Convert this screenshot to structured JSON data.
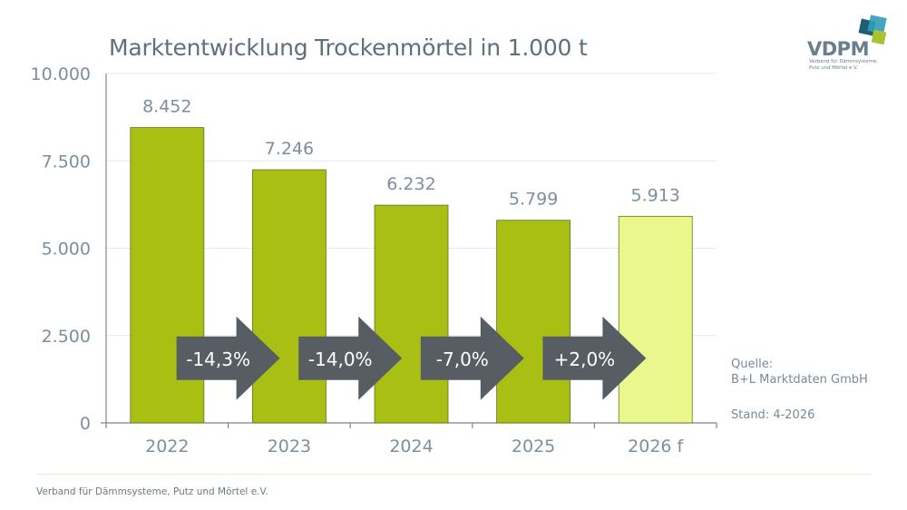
{
  "title": "Marktentwicklung Trockenmörtel in 1.000 t",
  "logo": {
    "name": "VDPM",
    "sub_line1": "Verband für Dämmsysteme,",
    "sub_line2": "Putz und Mörtel e.V.",
    "colors": [
      "#1f5d73",
      "#2f9fb8",
      "#a8c430"
    ]
  },
  "chart_data": {
    "type": "bar",
    "title": "Marktentwicklung Trockenmörtel in 1.000 t",
    "categories": [
      "2022",
      "2023",
      "2024",
      "2025",
      "2026 f"
    ],
    "values": [
      8452,
      7246,
      6232,
      5799,
      5913
    ],
    "value_labels": [
      "8.452",
      "7.246",
      "6.232",
      "5.799",
      "5.913"
    ],
    "ylim": [
      0,
      10000
    ],
    "yticks": [
      0,
      2500,
      5000,
      7500,
      10000
    ],
    "ytick_labels": [
      "0",
      "2.500",
      "5.000",
      "7.500",
      "10.000"
    ],
    "changes": [
      "-14,3%",
      "-14,0%",
      "-7,0%",
      "+2,0%"
    ],
    "forecast_index": 4,
    "colors": {
      "bar": "#a9bf14",
      "forecast_bar": "#eaf78c",
      "arrow": "#565e64",
      "grid": "#e6e9ec",
      "label": "#7d8f9c"
    },
    "grid": true
  },
  "source": {
    "label": "Quelle:",
    "name": "B+L Marktdaten GmbH",
    "stand": "Stand: 4-2026"
  },
  "footer": "Verband für Dämmsysteme, Putz und Mörtel e.V."
}
